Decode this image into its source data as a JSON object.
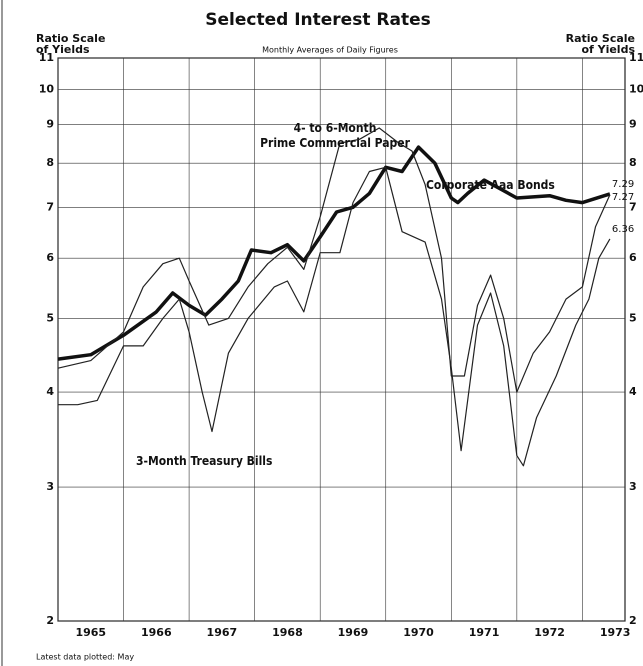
{
  "chart_data": {
    "type": "line",
    "title": "Selected Interest Rates",
    "subtitle": "Monthly Averages of Daily Figures",
    "y_label": "Ratio Scale\nof Yields",
    "y2_label": "Ratio Scale\nof Yields",
    "footnote": "Latest data plotted: May",
    "log_scale": true,
    "grid": true,
    "xlim": [
      1965,
      1973.65
    ],
    "xticks": [
      {
        "value": 1965,
        "label": "1965"
      },
      {
        "value": 1966,
        "label": "1966"
      },
      {
        "value": 1967,
        "label": "1967"
      },
      {
        "value": 1968,
        "label": "1968"
      },
      {
        "value": 1969,
        "label": "1969"
      },
      {
        "value": 1970,
        "label": "1970"
      },
      {
        "value": 1971,
        "label": "1971"
      },
      {
        "value": 1972,
        "label": "1972"
      },
      {
        "value": 1973,
        "label": "1973"
      }
    ],
    "ylim": [
      2,
      11
    ],
    "yticks": [
      2,
      3,
      4,
      5,
      6,
      7,
      8,
      9,
      10,
      11
    ],
    "series": [
      {
        "name": "Corporate Aaa Bonds",
        "color": "#111111",
        "width": 3.5,
        "end_label": "7.29",
        "x": [
          1965.0,
          1965.5,
          1966.0,
          1966.5,
          1966.75,
          1967.0,
          1967.25,
          1967.5,
          1967.75,
          1967.95,
          1968.25,
          1968.5,
          1968.75,
          1969.0,
          1969.25,
          1969.5,
          1969.75,
          1970.0,
          1970.25,
          1970.5,
          1970.75,
          1971.0,
          1971.1,
          1971.25,
          1971.5,
          1971.75,
          1972.0,
          1972.5,
          1972.75,
          1973.0,
          1973.42
        ],
        "values": [
          4.42,
          4.48,
          4.75,
          5.1,
          5.4,
          5.2,
          5.05,
          5.3,
          5.6,
          6.15,
          6.1,
          6.25,
          5.95,
          6.4,
          6.9,
          7.0,
          7.3,
          7.9,
          7.8,
          8.4,
          8.0,
          7.2,
          7.1,
          7.3,
          7.6,
          7.4,
          7.2,
          7.25,
          7.15,
          7.1,
          7.29
        ]
      },
      {
        "name": "4- to 6-Month\nPrime Commercial Paper",
        "color": "#222222",
        "width": 1.2,
        "end_label": "7.27",
        "x": [
          1965.0,
          1965.5,
          1966.0,
          1966.3,
          1966.6,
          1966.85,
          1967.0,
          1967.3,
          1967.6,
          1967.9,
          1968.2,
          1968.5,
          1968.75,
          1969.0,
          1969.3,
          1969.6,
          1969.9,
          1970.2,
          1970.4,
          1970.6,
          1970.85,
          1971.0,
          1971.2,
          1971.4,
          1971.6,
          1971.8,
          1972.0,
          1972.25,
          1972.5,
          1972.75,
          1973.0,
          1973.2,
          1973.42
        ],
        "values": [
          4.3,
          4.4,
          4.8,
          5.5,
          5.9,
          6.0,
          5.6,
          4.9,
          5.0,
          5.5,
          5.9,
          6.2,
          5.8,
          6.8,
          8.5,
          8.6,
          8.9,
          8.5,
          8.3,
          7.5,
          6.0,
          4.2,
          4.2,
          5.2,
          5.7,
          5.0,
          4.0,
          4.5,
          4.8,
          5.3,
          5.5,
          6.6,
          7.27
        ]
      },
      {
        "name": "3-Month Treasury Bills",
        "color": "#222222",
        "width": 1.2,
        "end_label": "6.36",
        "x": [
          1965.0,
          1965.3,
          1965.6,
          1966.0,
          1966.3,
          1966.6,
          1966.85,
          1967.0,
          1967.2,
          1967.35,
          1967.6,
          1967.9,
          1968.3,
          1968.5,
          1968.75,
          1969.0,
          1969.3,
          1969.5,
          1969.75,
          1970.0,
          1970.25,
          1970.6,
          1970.85,
          1971.0,
          1971.15,
          1971.4,
          1971.6,
          1971.8,
          1972.0,
          1972.1,
          1972.3,
          1972.6,
          1972.9,
          1973.1,
          1973.25,
          1973.42
        ],
        "values": [
          3.85,
          3.85,
          3.9,
          4.6,
          4.6,
          5.0,
          5.3,
          4.8,
          4.0,
          3.55,
          4.5,
          5.0,
          5.5,
          5.6,
          5.1,
          6.1,
          6.1,
          7.1,
          7.8,
          7.9,
          6.5,
          6.3,
          5.3,
          4.3,
          3.35,
          4.9,
          5.4,
          4.6,
          3.3,
          3.2,
          3.7,
          4.2,
          4.9,
          5.3,
          6.0,
          6.36
        ]
      }
    ]
  }
}
